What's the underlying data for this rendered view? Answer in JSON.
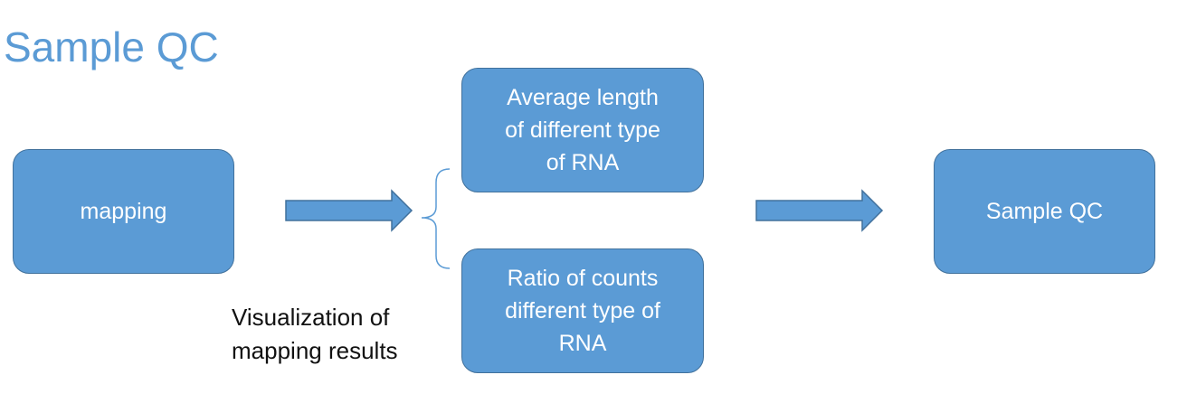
{
  "title": "Sample QC",
  "nodes": {
    "mapping": "mapping",
    "avg_length": "Average length\nof different type\nof RNA",
    "ratio_counts": "Ratio of counts\ndifferent type of\nRNA",
    "sample_qc": "Sample QC"
  },
  "caption": "Visualization of\nmapping results",
  "colors": {
    "box_fill": "#5b9bd5",
    "box_border": "#41719c",
    "title_text": "#5b9bd5",
    "box_text": "#ffffff"
  }
}
